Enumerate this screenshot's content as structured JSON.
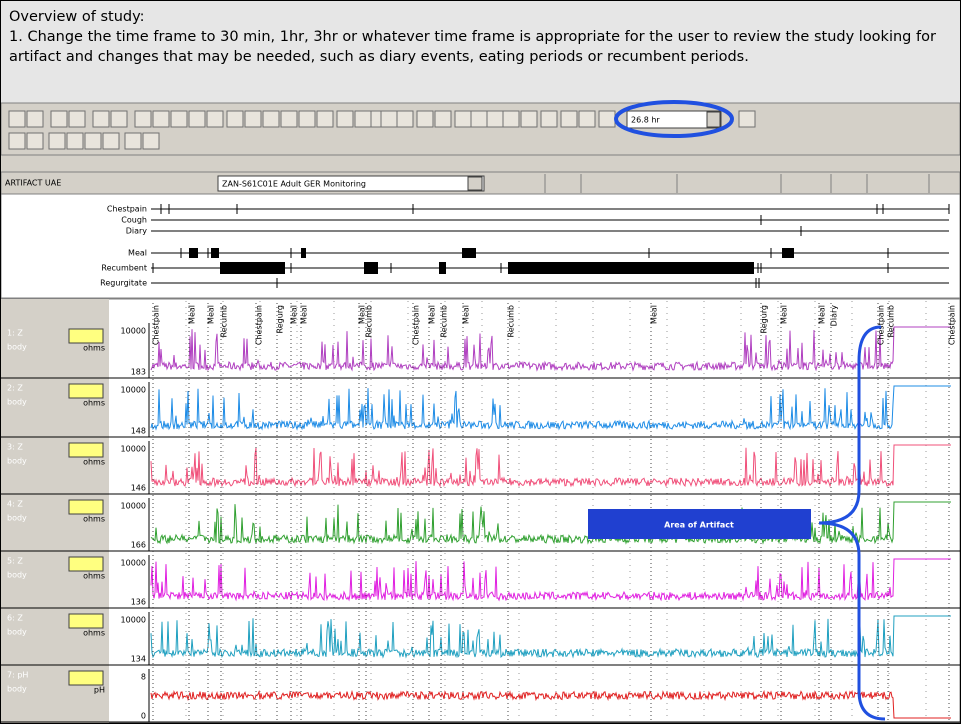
{
  "header": {
    "title": "Overview of study:",
    "instruction": "1.  Change the time frame to 30 min, 1hr, 3hr or whatever time frame is appropriate for the user to review the study looking for artifact and changes that may be needed, such as diary events, eating periods or recumbent periods."
  },
  "toolbar": {
    "time_frame": "26.8 hr"
  },
  "study_bar": {
    "mode": "ARTIFACT UAE",
    "study": "ZAN-S61C01E  Adult GER Monitoring"
  },
  "event_rows": [
    "Chestpain",
    "Cough",
    "Diary",
    "Meal",
    "Recumbent",
    "Regurgitate"
  ],
  "event_markers": [
    "Chestpain",
    "Meal",
    "Meal",
    "Recumb",
    "Chestpain",
    "Regurg",
    "Meal",
    "Meal",
    "Meal",
    "Recumb",
    "Chestpain",
    "Meal",
    "Recumb",
    "Meal",
    "Recumb",
    "Meal",
    "Regurg",
    "Meal",
    "Meal",
    "Diary",
    "Chestpain",
    "Recumb",
    "Chestpain"
  ],
  "channels": [
    {
      "name": "1: Z",
      "site": "body",
      "unit": "ohms",
      "max": 10000,
      "min": 183
    },
    {
      "name": "2: Z",
      "site": "body",
      "unit": "ohms",
      "max": 10000,
      "min": 148
    },
    {
      "name": "3: Z",
      "site": "body",
      "unit": "ohms",
      "max": 10000,
      "min": 146
    },
    {
      "name": "4: Z",
      "site": "body",
      "unit": "ohms",
      "max": 10000,
      "min": 166
    },
    {
      "name": "5: Z",
      "site": "body",
      "unit": "ohms",
      "max": 10000,
      "min": 136
    },
    {
      "name": "6: Z",
      "site": "body",
      "unit": "ohms",
      "max": 10000,
      "min": 134
    },
    {
      "name": "7: pH",
      "site": "body",
      "unit": "pH",
      "max": 8,
      "min": 0
    }
  ],
  "annotation": "Area of Artifact"
}
